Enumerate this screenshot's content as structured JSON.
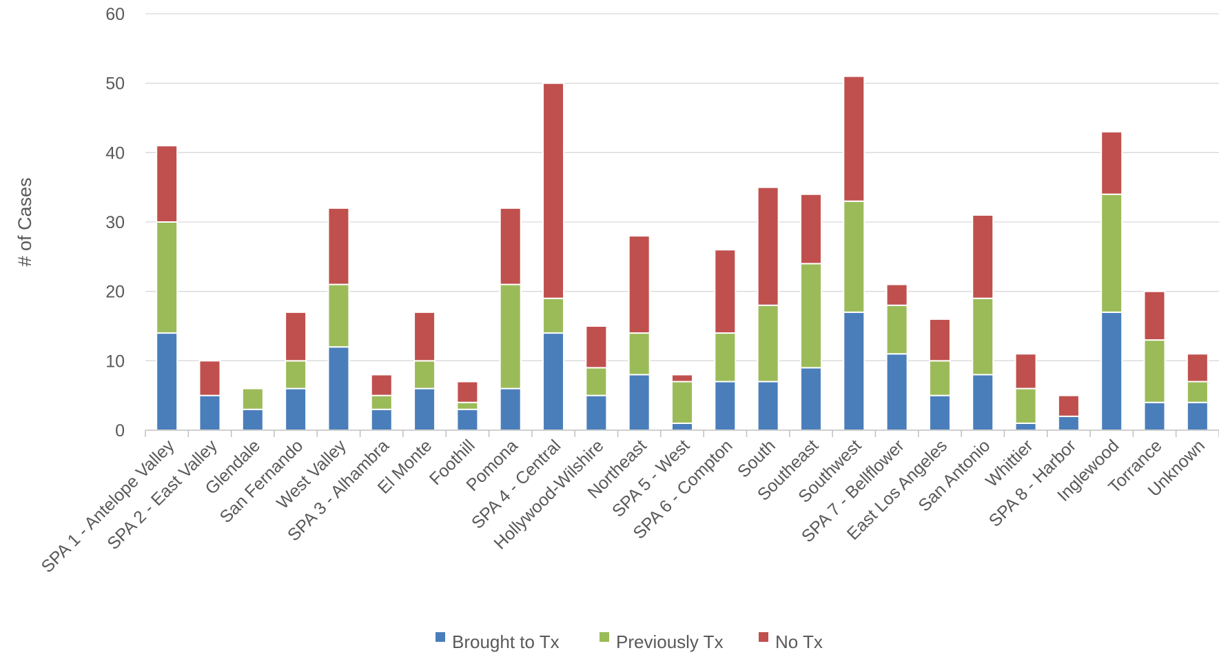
{
  "chart_data": {
    "type": "bar",
    "stacked": true,
    "title": "",
    "xlabel": "",
    "ylabel": "# of Cases",
    "ylim": [
      0,
      60
    ],
    "yticks": [
      0,
      10,
      20,
      30,
      40,
      50,
      60
    ],
    "grid": true,
    "legend_position": "bottom",
    "categories": [
      "SPA 1 - Antelope Valley",
      "SPA 2 - East Valley",
      "Glendale",
      "San Fernando",
      "West Valley",
      "SPA 3 - Alhambra",
      "El Monte",
      "Foothill",
      "Pomona",
      "SPA 4 - Central",
      "Hollywood-Wilshire",
      "Northeast",
      "SPA 5 - West",
      "SPA 6 - Compton",
      "South",
      "Southeast",
      "Southwest",
      "SPA 7 - Bellflower",
      "East Los Angeles",
      "San Antonio",
      "Whittier",
      "SPA 8 - Harbor",
      "Inglewood",
      "Torrance",
      "Unknown"
    ],
    "series": [
      {
        "name": "Brought to Tx",
        "color": "#4A7EBB",
        "values": [
          14,
          5,
          3,
          6,
          12,
          3,
          6,
          3,
          6,
          14,
          5,
          8,
          1,
          7,
          7,
          9,
          17,
          11,
          5,
          8,
          1,
          2,
          17,
          4,
          4
        ]
      },
      {
        "name": "Previously Tx",
        "color": "#9BBB59",
        "values": [
          16,
          0,
          3,
          4,
          9,
          2,
          4,
          1,
          15,
          5,
          4,
          6,
          6,
          7,
          11,
          15,
          16,
          7,
          5,
          11,
          5,
          0,
          17,
          9,
          3
        ]
      },
      {
        "name": "No Tx",
        "color": "#C0504D",
        "values": [
          11,
          5,
          0,
          7,
          11,
          3,
          7,
          3,
          11,
          31,
          6,
          14,
          1,
          12,
          17,
          10,
          18,
          3,
          6,
          12,
          5,
          3,
          9,
          7,
          4
        ]
      }
    ]
  }
}
